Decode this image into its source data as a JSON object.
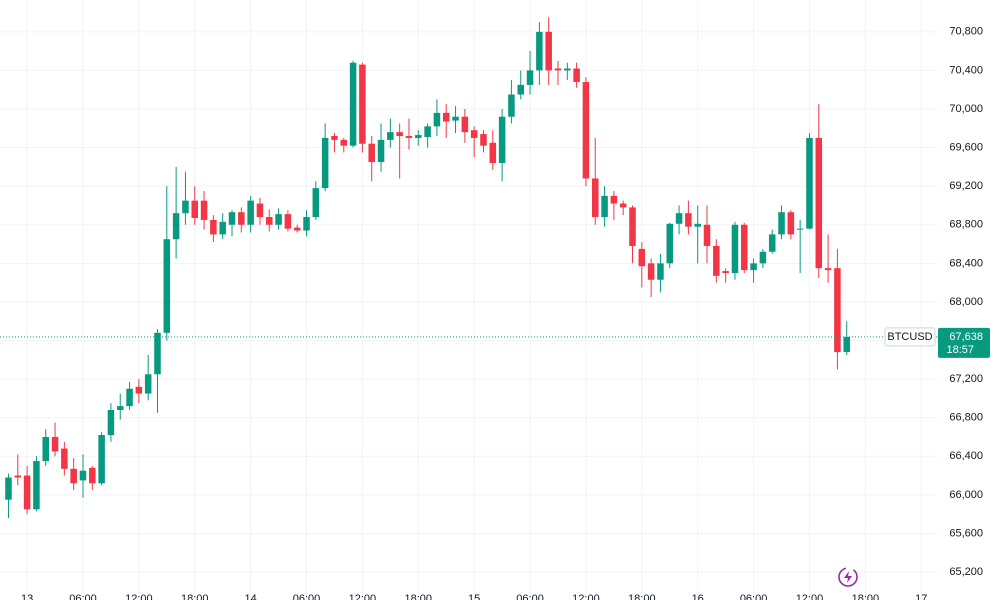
{
  "chart_data": {
    "type": "candlestick",
    "up_color": "#089981",
    "down_color": "#f23645",
    "grid": true,
    "xlim": [
      -0.91,
      99.8
    ],
    "ylim": [
      64910,
      71130
    ],
    "yticks": [
      {
        "value": 65200,
        "label": "65,200"
      },
      {
        "value": 65600,
        "label": "65,600"
      },
      {
        "value": 66000,
        "label": "66,000"
      },
      {
        "value": 66400,
        "label": "66,400"
      },
      {
        "value": 66800,
        "label": "66,800"
      },
      {
        "value": 67200,
        "label": "67,200"
      },
      {
        "value": 67600,
        "label": "67,600"
      },
      {
        "value": 68000,
        "label": "68,000"
      },
      {
        "value": 68400,
        "label": "68,400"
      },
      {
        "value": 68800,
        "label": "68,800"
      },
      {
        "value": 69200,
        "label": "69,200"
      },
      {
        "value": 69600,
        "label": "69,600"
      },
      {
        "value": 70000,
        "label": "70,000"
      },
      {
        "value": 70400,
        "label": "70,400"
      },
      {
        "value": 70800,
        "label": "70,800"
      }
    ],
    "xticks": [
      {
        "value": 2,
        "label": "13"
      },
      {
        "value": 8,
        "label": "06:00"
      },
      {
        "value": 14,
        "label": "12:00"
      },
      {
        "value": 20,
        "label": "18:00"
      },
      {
        "value": 26,
        "label": "14"
      },
      {
        "value": 32,
        "label": "06:00"
      },
      {
        "value": 38,
        "label": "12:00"
      },
      {
        "value": 44,
        "label": "18:00"
      },
      {
        "value": 50,
        "label": "15"
      },
      {
        "value": 56,
        "label": "06:00"
      },
      {
        "value": 62,
        "label": "12:00"
      },
      {
        "value": 68,
        "label": "18:00"
      },
      {
        "value": 74,
        "label": "16"
      },
      {
        "value": 80,
        "label": "06:00"
      },
      {
        "value": 86,
        "label": "12:00"
      },
      {
        "value": 92,
        "label": "18:00"
      },
      {
        "value": 98,
        "label": "17"
      }
    ],
    "open": [
      65950,
      66200,
      66200,
      65850,
      66350,
      66600,
      66480,
      66270,
      66150,
      66280,
      66120,
      66620,
      66880,
      66920,
      67120,
      67050,
      67250,
      67680,
      68650,
      68920,
      69050,
      69050,
      68850,
      68700,
      68800,
      68930,
      68800,
      69020,
      68880,
      68800,
      68910,
      68770,
      68740,
      68880,
      69180,
      69720,
      69680,
      69620,
      70460,
      69640,
      69450,
      69680,
      69760,
      69720,
      69700,
      69710,
      69820,
      69960,
      69880,
      69920,
      69780,
      69740,
      69650,
      69440,
      69920,
      70150,
      70250,
      70400,
      70800,
      70420,
      70400,
      70420,
      70280,
      69280,
      68880,
      69100,
      69020,
      68980,
      68550,
      68400,
      68230,
      68400,
      68810,
      68920,
      68780,
      68800,
      68580,
      68320,
      68300,
      68800,
      68330,
      68400,
      68520,
      68700,
      68930,
      68750,
      68760,
      69700,
      68350,
      68350,
      67480
    ],
    "high": [
      66220,
      66420,
      66300,
      66400,
      66680,
      66750,
      66550,
      66380,
      66420,
      66300,
      66650,
      66950,
      67050,
      67170,
      67200,
      67450,
      67720,
      69200,
      69400,
      69350,
      69200,
      69150,
      68900,
      68920,
      68950,
      68980,
      69100,
      69080,
      68960,
      68970,
      68950,
      68800,
      68950,
      69250,
      69850,
      69750,
      69700,
      70500,
      70480,
      69720,
      69850,
      69900,
      69850,
      69900,
      69780,
      69850,
      70100,
      70050,
      70030,
      70000,
      69820,
      69780,
      69780,
      70000,
      70300,
      70400,
      70600,
      70900,
      70950,
      70500,
      70480,
      70480,
      70330,
      69700,
      69200,
      69150,
      69050,
      69000,
      68620,
      68450,
      68500,
      68820,
      69000,
      69050,
      69000,
      69000,
      68650,
      68350,
      68830,
      68820,
      68450,
      68550,
      68750,
      69000,
      68950,
      68850,
      69750,
      70050,
      68700,
      68550,
      67800
    ],
    "low": [
      65760,
      66100,
      65800,
      65830,
      66300,
      66400,
      66200,
      66050,
      65970,
      66050,
      66100,
      66550,
      66780,
      66880,
      66950,
      66980,
      66850,
      67600,
      68450,
      68800,
      68800,
      68750,
      68620,
      68650,
      68680,
      68720,
      68720,
      68800,
      68730,
      68750,
      68730,
      68720,
      68680,
      68850,
      69150,
      69550,
      69550,
      69600,
      69550,
      69250,
      69350,
      69600,
      69280,
      69580,
      69620,
      69600,
      69720,
      69700,
      69750,
      69650,
      69500,
      69550,
      69370,
      69250,
      69850,
      70100,
      70150,
      70250,
      70250,
      70250,
      70300,
      70220,
      69200,
      68800,
      68780,
      68850,
      68900,
      68400,
      68150,
      68050,
      68100,
      68350,
      68700,
      68700,
      68400,
      68400,
      68200,
      68200,
      68230,
      68300,
      68200,
      68350,
      68500,
      68650,
      68650,
      68300,
      68750,
      68250,
      68200,
      67300,
      67450
    ],
    "close": [
      66180,
      66180,
      65850,
      66350,
      66600,
      66450,
      66270,
      66120,
      66250,
      66120,
      66620,
      66880,
      66920,
      67100,
      67050,
      67250,
      67680,
      68650,
      68920,
      69050,
      68870,
      68850,
      68700,
      68830,
      68930,
      68800,
      69050,
      68880,
      68800,
      68910,
      68760,
      68740,
      68880,
      69180,
      69700,
      69680,
      69620,
      70480,
      69640,
      69450,
      69680,
      69760,
      69720,
      69700,
      69730,
      69820,
      69960,
      69870,
      69920,
      69760,
      69700,
      69620,
      69440,
      69920,
      70150,
      70250,
      70400,
      70800,
      70400,
      70400,
      70420,
      70280,
      69280,
      68880,
      69100,
      69020,
      68980,
      68580,
      68370,
      68230,
      68400,
      68810,
      68920,
      68780,
      68810,
      68580,
      68270,
      68300,
      68800,
      68330,
      68400,
      68520,
      68700,
      68930,
      68700,
      68760,
      69700,
      68350,
      68330,
      67480,
      67638
    ],
    "symbol": "BTCUSD",
    "last_price": 67638,
    "last_price_label": "67,638",
    "countdown": "18:57"
  }
}
